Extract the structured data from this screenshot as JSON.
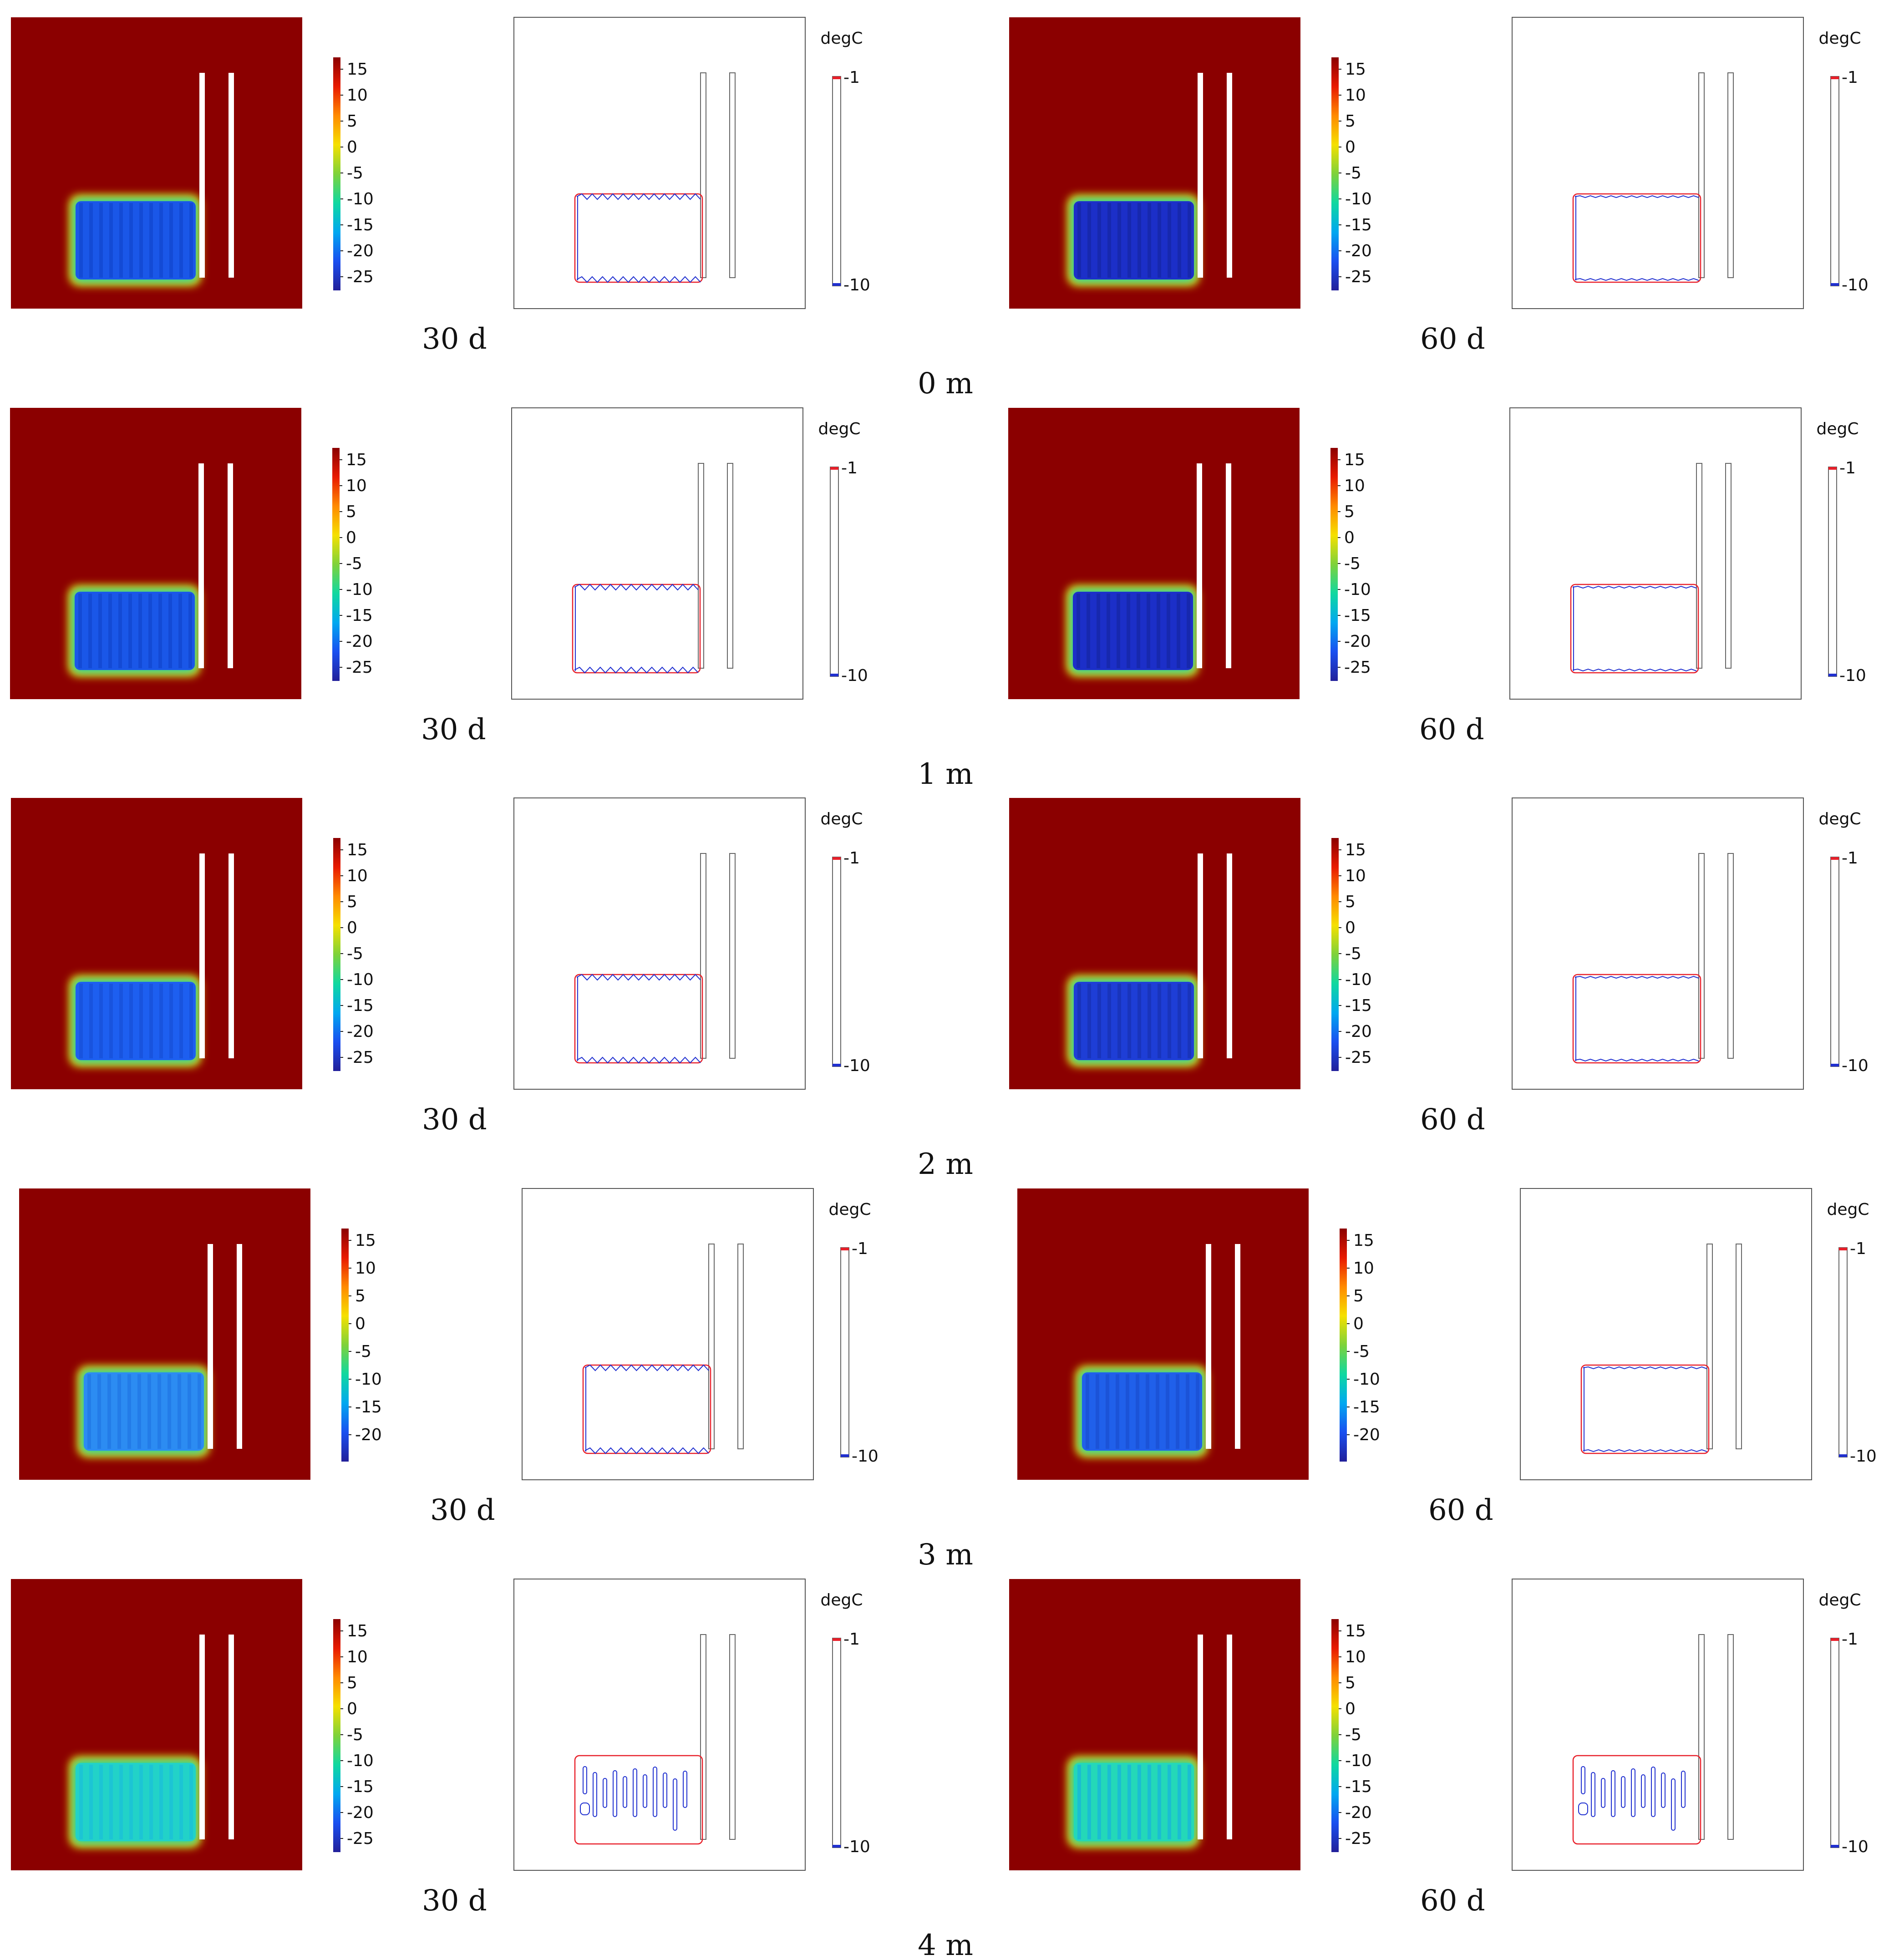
{
  "figure": {
    "colors": {
      "warm_field": "#8b0000",
      "isotherm_warm": "#e8202a",
      "isotherm_cold": "#2030d0",
      "wall": "#ffffff",
      "frame": "#555555"
    },
    "temperature_colorbar": {
      "ticks_default": [
        "15",
        "10",
        "5",
        "0",
        "-5",
        "-10",
        "-15",
        "-20",
        "-25"
      ],
      "ticks_row4": [
        "15",
        "10",
        "5",
        "0",
        "-5",
        "-10",
        "-15",
        "-20"
      ],
      "gradient": [
        "#8b0000",
        "#e81a00",
        "#ff8a00",
        "#f5e000",
        "#7ed23a",
        "#10d8a0",
        "#00a8f0",
        "#1a4ff0",
        "#22209a"
      ]
    },
    "contour_legend": {
      "unit": "degC",
      "top_label": "-1",
      "bottom_label": "-10"
    },
    "rows": [
      {
        "depth_label": "0 m",
        "panels": [
          {
            "time_label": "30 d",
            "fill_color": "#1a57e8",
            "fill_accent": "#0f3fc4",
            "contour_style": "wavy"
          },
          {
            "time_label": "60 d",
            "fill_color": "#1c2fc8",
            "fill_accent": "#142299",
            "contour_style": "smooth"
          }
        ]
      },
      {
        "depth_label": "1 m",
        "panels": [
          {
            "time_label": "30 d",
            "fill_color": "#1a57e8",
            "fill_accent": "#0f3fc4",
            "contour_style": "wavy"
          },
          {
            "time_label": "60 d",
            "fill_color": "#1c2fc8",
            "fill_accent": "#142299",
            "contour_style": "smooth"
          }
        ]
      },
      {
        "depth_label": "2 m",
        "panels": [
          {
            "time_label": "30 d",
            "fill_color": "#1d5ff0",
            "fill_accent": "#1448d0",
            "contour_style": "wavy"
          },
          {
            "time_label": "60 d",
            "fill_color": "#1e3ed6",
            "fill_accent": "#152ba8",
            "contour_style": "smooth"
          }
        ]
      },
      {
        "depth_label": "3 m",
        "panels": [
          {
            "time_label": "30 d",
            "fill_color": "#2c8cf2",
            "fill_accent": "#1d6fe0",
            "contour_style": "wavy"
          },
          {
            "time_label": "60 d",
            "fill_color": "#2060ea",
            "fill_accent": "#1848c8",
            "contour_style": "smooth"
          }
        ]
      },
      {
        "depth_label": "4 m",
        "panels": [
          {
            "time_label": "30 d",
            "fill_color": "#22d2c8",
            "fill_accent": "#18b8e0",
            "contour_style": "islands"
          },
          {
            "time_label": "60 d",
            "fill_color": "#24d8b8",
            "fill_accent": "#14a8e8",
            "contour_style": "islands"
          }
        ]
      }
    ]
  }
}
